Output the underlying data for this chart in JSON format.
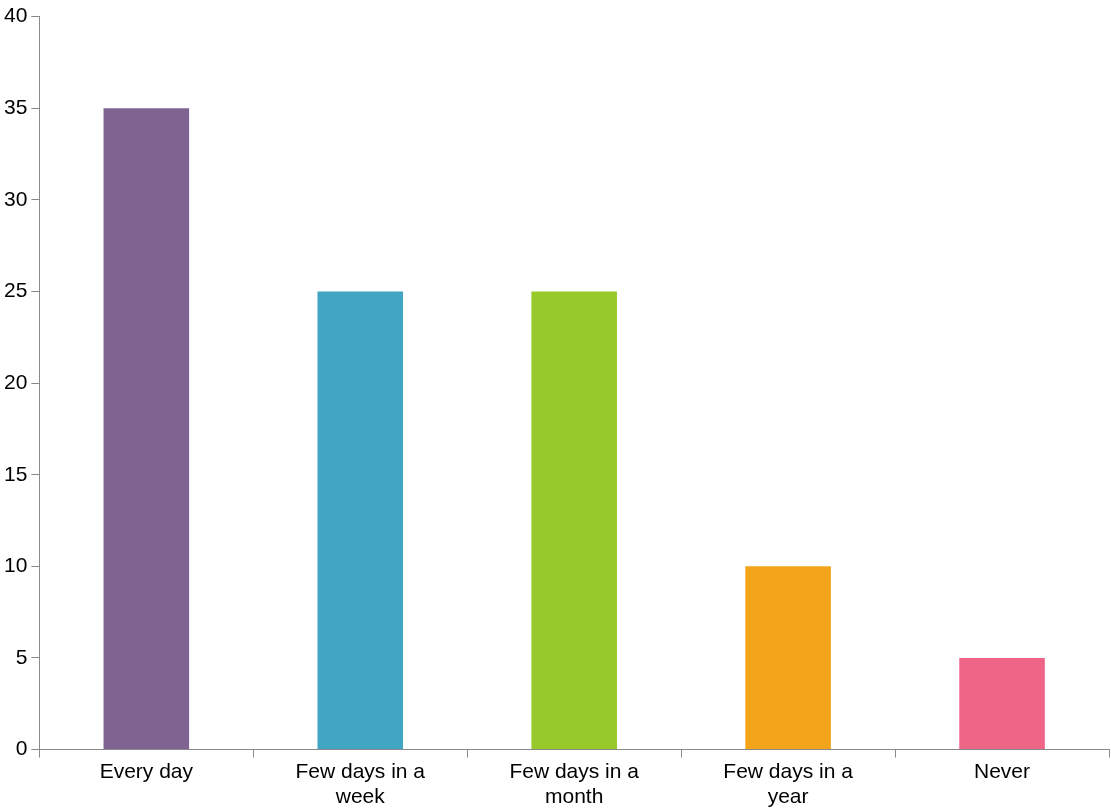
{
  "chart_data": {
    "type": "bar",
    "categories": [
      "Every day",
      "Few days in a week",
      "Few days in a month",
      "Few days in a year",
      "Never"
    ],
    "values": [
      35,
      25,
      25,
      10,
      5
    ],
    "colors": [
      "#7f6391",
      "#41a5c3",
      "#97c92a",
      "#f4a41b",
      "#ef6588"
    ],
    "ylim": [
      0,
      40
    ],
    "yticks": [
      0,
      5,
      10,
      15,
      20,
      25,
      30,
      35,
      40
    ],
    "grid": false,
    "legend": false
  }
}
